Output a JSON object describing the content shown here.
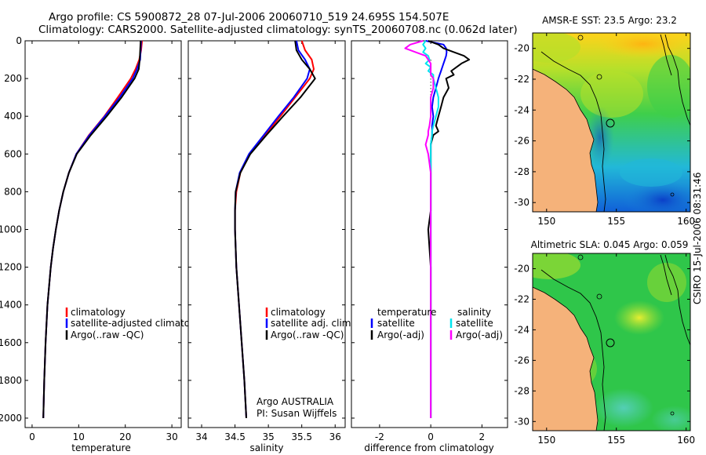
{
  "header": {
    "line1": "Argo profile: CS 5900872_28 07-Jul-2006 20060710_519 24.695S 154.507E",
    "line2": "Climatology: CARS2000. Satellite-adjusted climatology: synTS_20060708.nc (0.062d later)"
  },
  "credit": "CSIRO 15-Jul-2006 08:31:46",
  "colors": {
    "climatology": "#ff0000",
    "satellite": "#0000ff",
    "argo": "#000000",
    "sal_satellite": "#00e5ee",
    "sal_argo": "#ff00ff",
    "land": "#f5b27a",
    "depth_contour": "#000000"
  },
  "chart_data": [
    {
      "type": "line",
      "panel": "temperature",
      "xlabel": "temperature",
      "xlim": [
        -1.5,
        32
      ],
      "xticks": [
        0,
        10,
        20,
        30
      ],
      "ylim": [
        2050,
        0
      ],
      "yreversed": true,
      "yticks": [
        0,
        200,
        400,
        600,
        800,
        1000,
        1200,
        1400,
        1600,
        1800,
        2000
      ],
      "legend": [
        "climatology",
        "satellite-adjusted climatolog",
        "Argo(..raw -QC)"
      ],
      "legend_position": "lower-center",
      "depth": [
        0,
        50,
        100,
        150,
        200,
        300,
        400,
        500,
        600,
        700,
        800,
        900,
        1000,
        1100,
        1200,
        1400,
        1600,
        1800,
        2000
      ],
      "series": [
        {
          "name": "climatology",
          "color": "#ff0000",
          "values": [
            23.6,
            23.4,
            23.0,
            22.2,
            21.2,
            18.4,
            15.5,
            12.2,
            9.5,
            7.9,
            6.7,
            5.8,
            5.1,
            4.5,
            4.0,
            3.3,
            2.9,
            2.6,
            2.4
          ]
        },
        {
          "name": "satellite-adjusted climatolog",
          "color": "#0000ff",
          "values": [
            23.4,
            23.3,
            23.2,
            22.5,
            21.6,
            18.8,
            15.6,
            12.3,
            9.5,
            7.9,
            6.7,
            5.8,
            5.1,
            4.5,
            4.0,
            3.3,
            2.9,
            2.6,
            2.4
          ]
        },
        {
          "name": "Argo(..raw -QC)",
          "color": "#000000",
          "values": [
            23.3,
            23.2,
            23.1,
            22.9,
            22.0,
            19.2,
            16.0,
            12.6,
            9.6,
            7.9,
            6.7,
            5.8,
            5.1,
            4.5,
            4.0,
            3.3,
            2.9,
            2.6,
            2.4
          ]
        }
      ]
    },
    {
      "type": "line",
      "panel": "salinity",
      "xlabel": "salinity",
      "xlim": [
        33.8,
        36.15
      ],
      "xticks": [
        34,
        34.5,
        35,
        35.5,
        36
      ],
      "ylim": [
        2050,
        0
      ],
      "yreversed": true,
      "legend": [
        "climatology",
        "satellite adj. clim.",
        "Argo(..raw -QC)"
      ],
      "legend_position": "lower-center",
      "annotation": [
        "Argo AUSTRALIA",
        "PI: Susan Wijffels"
      ],
      "depth": [
        0,
        50,
        100,
        150,
        200,
        300,
        400,
        500,
        600,
        700,
        800,
        900,
        1000,
        1200,
        1400,
        1600,
        1800,
        2000
      ],
      "series": [
        {
          "name": "climatology",
          "color": "#ff0000",
          "values": [
            35.5,
            35.55,
            35.65,
            35.68,
            35.62,
            35.4,
            35.18,
            34.95,
            34.72,
            34.58,
            34.52,
            34.5,
            34.5,
            34.52,
            34.56,
            34.6,
            34.64,
            34.67
          ]
        },
        {
          "name": "satellite adj. clim.",
          "color": "#0000ff",
          "values": [
            35.42,
            35.45,
            35.55,
            35.62,
            35.58,
            35.38,
            35.15,
            34.93,
            34.71,
            34.57,
            34.51,
            34.5,
            34.5,
            34.52,
            34.56,
            34.6,
            34.64,
            34.67
          ]
        },
        {
          "name": "Argo(..raw -QC)",
          "color": "#000000",
          "values": [
            35.4,
            35.42,
            35.5,
            35.62,
            35.7,
            35.48,
            35.22,
            34.97,
            34.73,
            34.58,
            34.51,
            34.5,
            34.5,
            34.52,
            34.56,
            34.6,
            34.64,
            34.67
          ]
        }
      ]
    },
    {
      "type": "line",
      "panel": "difference",
      "xlabel": "difference from climatology",
      "xlim": [
        -3.1,
        3.0
      ],
      "xticks": [
        -2,
        0,
        2
      ],
      "ylim": [
        2050,
        0
      ],
      "yreversed": true,
      "legend_temperature_title": "temperature",
      "legend_salinity_title": "salinity",
      "legend": [
        "satellite",
        "Argo(-adj)",
        "satellite",
        "Argo(-adj)"
      ],
      "legend_position": "lower-center",
      "depth": [
        0,
        20,
        40,
        60,
        80,
        100,
        120,
        140,
        160,
        180,
        200,
        250,
        300,
        350,
        400,
        450,
        480,
        500,
        550,
        600,
        650,
        700,
        800,
        900,
        1000,
        1200,
        1400,
        1600,
        1800,
        2000
      ],
      "series": [
        {
          "name": "temperature satellite",
          "color": "#0000ff",
          "values": [
            -0.2,
            0.5,
            0.6,
            0.62,
            0.6,
            0.55,
            0.5,
            0.45,
            0.4,
            0.35,
            0.3,
            0.2,
            0.1,
            0.05,
            0.1,
            0.05,
            0.05,
            0.05,
            0.0,
            0.0,
            0.0,
            0.0,
            0.0,
            0.0,
            0.0,
            0.0,
            0.0,
            0.0,
            0.0,
            0.0
          ]
        },
        {
          "name": "temperature Argo(-adj)",
          "color": "#000000",
          "values": [
            -0.1,
            0.3,
            0.5,
            0.9,
            1.3,
            1.5,
            1.2,
            1.0,
            0.8,
            0.9,
            0.6,
            0.7,
            0.5,
            0.4,
            0.3,
            0.2,
            0.3,
            0.1,
            0.0,
            0.0,
            0.0,
            0.0,
            0.0,
            0.0,
            -0.1,
            0.0,
            0.0,
            0.0,
            0.0,
            0.0
          ]
        },
        {
          "name": "salinity satellite",
          "color": "#00e5ee",
          "values": [
            -0.2,
            -0.3,
            -0.2,
            -0.3,
            -0.1,
            -0.05,
            -0.2,
            0.0,
            -0.1,
            0.1,
            0.1,
            0.2,
            0.3,
            0.3,
            0.2,
            0.1,
            0.05,
            0.05,
            0.0,
            0.0,
            0.0,
            0.0,
            0.0,
            0.0,
            0.0,
            0.0,
            0.0,
            0.0,
            0.0,
            0.0
          ]
        },
        {
          "name": "salinity Argo(-adj)",
          "color": "#ff00ff",
          "values": [
            -0.3,
            -0.8,
            -1.0,
            -0.6,
            -0.2,
            -0.1,
            0.0,
            0.0,
            0.0,
            0.0,
            0.1,
            0.1,
            0.0,
            0.0,
            0.0,
            -0.05,
            -0.1,
            -0.1,
            -0.2,
            -0.1,
            -0.05,
            0.0,
            0.0,
            0.0,
            0.0,
            0.0,
            0.0,
            0.0,
            0.0,
            0.0
          ]
        }
      ]
    },
    {
      "type": "heatmap",
      "panel": "sst-map",
      "title": "AMSR-E SST: 23.5 Argo: 23.2",
      "xlim": [
        149,
        160.3
      ],
      "ylim": [
        -30.6,
        -19
      ],
      "xticks": [
        150,
        155,
        160
      ],
      "yticks": [
        -20,
        -22,
        -24,
        -26,
        -28,
        -30
      ],
      "argo_position": {
        "lon": 154.507,
        "lat": -24.695
      }
    },
    {
      "type": "heatmap",
      "panel": "sla-map",
      "title": "Altimetric SLA: 0.045 Argo: 0.059",
      "xlim": [
        149,
        160.3
      ],
      "ylim": [
        -30.6,
        -19
      ],
      "xticks": [
        150,
        155,
        160
      ],
      "yticks": [
        -20,
        -22,
        -24,
        -26,
        -28,
        -30
      ],
      "argo_position": {
        "lon": 154.507,
        "lat": -24.695
      }
    }
  ]
}
